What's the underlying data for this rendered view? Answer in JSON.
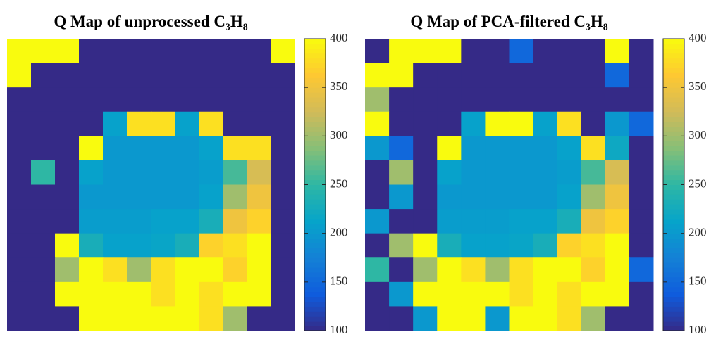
{
  "chart_data": [
    {
      "type": "heatmap",
      "title": "Q Map of unprocessed C₃H₈",
      "zlim": [
        100,
        400
      ],
      "zticks": [
        100,
        150,
        200,
        250,
        300,
        350,
        400
      ],
      "colormap": [
        "#352a87",
        "#0f5cdd",
        "#1481d6",
        "#06a4ca",
        "#2eb7a4",
        "#87bf77",
        "#d1bb59",
        "#fec832",
        "#f9fb0e"
      ],
      "z": [
        [
          400,
          400,
          400,
          100,
          100,
          100,
          100,
          100,
          100,
          100,
          100,
          400
        ],
        [
          400,
          100,
          100,
          100,
          100,
          100,
          100,
          100,
          100,
          100,
          100,
          100
        ],
        [
          100,
          100,
          100,
          100,
          100,
          100,
          100,
          100,
          100,
          100,
          100,
          100
        ],
        [
          100,
          100,
          100,
          100,
          210,
          380,
          380,
          210,
          380,
          100,
          100,
          100
        ],
        [
          100,
          100,
          100,
          400,
          200,
          200,
          200,
          200,
          210,
          380,
          380,
          100
        ],
        [
          100,
          250,
          100,
          210,
          200,
          200,
          200,
          200,
          205,
          260,
          330,
          100
        ],
        [
          100,
          100,
          100,
          200,
          200,
          200,
          200,
          200,
          210,
          300,
          350,
          100
        ],
        [
          100,
          100,
          100,
          205,
          205,
          205,
          210,
          210,
          230,
          350,
          370,
          100
        ],
        [
          100,
          100,
          400,
          230,
          210,
          210,
          215,
          230,
          370,
          380,
          400,
          100
        ],
        [
          100,
          100,
          300,
          400,
          380,
          300,
          380,
          400,
          400,
          370,
          400,
          100
        ],
        [
          100,
          100,
          400,
          400,
          400,
          400,
          380,
          400,
          380,
          400,
          400,
          100
        ],
        [
          100,
          100,
          100,
          400,
          400,
          400,
          400,
          400,
          380,
          300,
          100,
          100
        ]
      ]
    },
    {
      "type": "heatmap",
      "title": "Q Map of PCA-filtered C₃H₈",
      "zlim": [
        100,
        400
      ],
      "zticks": [
        100,
        150,
        200,
        250,
        300,
        350,
        400
      ],
      "colormap": [
        "#352a87",
        "#0f5cdd",
        "#1481d6",
        "#06a4ca",
        "#2eb7a4",
        "#87bf77",
        "#d1bb59",
        "#fec832",
        "#f9fb0e"
      ],
      "z": [
        [
          100,
          400,
          400,
          400,
          100,
          100,
          150,
          100,
          100,
          100,
          400,
          100
        ],
        [
          400,
          400,
          100,
          100,
          100,
          100,
          100,
          100,
          100,
          100,
          150,
          100
        ],
        [
          300,
          100,
          100,
          100,
          100,
          100,
          100,
          100,
          100,
          100,
          100,
          100
        ],
        [
          400,
          100,
          100,
          100,
          210,
          400,
          400,
          210,
          380,
          100,
          200,
          150
        ],
        [
          200,
          150,
          100,
          400,
          200,
          200,
          200,
          200,
          210,
          380,
          220,
          100
        ],
        [
          100,
          300,
          100,
          210,
          200,
          200,
          200,
          200,
          205,
          260,
          330,
          100
        ],
        [
          100,
          200,
          100,
          200,
          200,
          200,
          200,
          200,
          210,
          300,
          350,
          100
        ],
        [
          200,
          100,
          100,
          205,
          205,
          205,
          210,
          210,
          230,
          350,
          370,
          100
        ],
        [
          100,
          300,
          400,
          230,
          210,
          210,
          215,
          230,
          370,
          380,
          400,
          100
        ],
        [
          250,
          100,
          300,
          400,
          380,
          300,
          380,
          400,
          400,
          370,
          400,
          150
        ],
        [
          100,
          200,
          400,
          400,
          400,
          400,
          380,
          400,
          380,
          400,
          400,
          100
        ],
        [
          100,
          100,
          200,
          400,
          400,
          200,
          400,
          400,
          380,
          300,
          100,
          100
        ]
      ]
    }
  ]
}
